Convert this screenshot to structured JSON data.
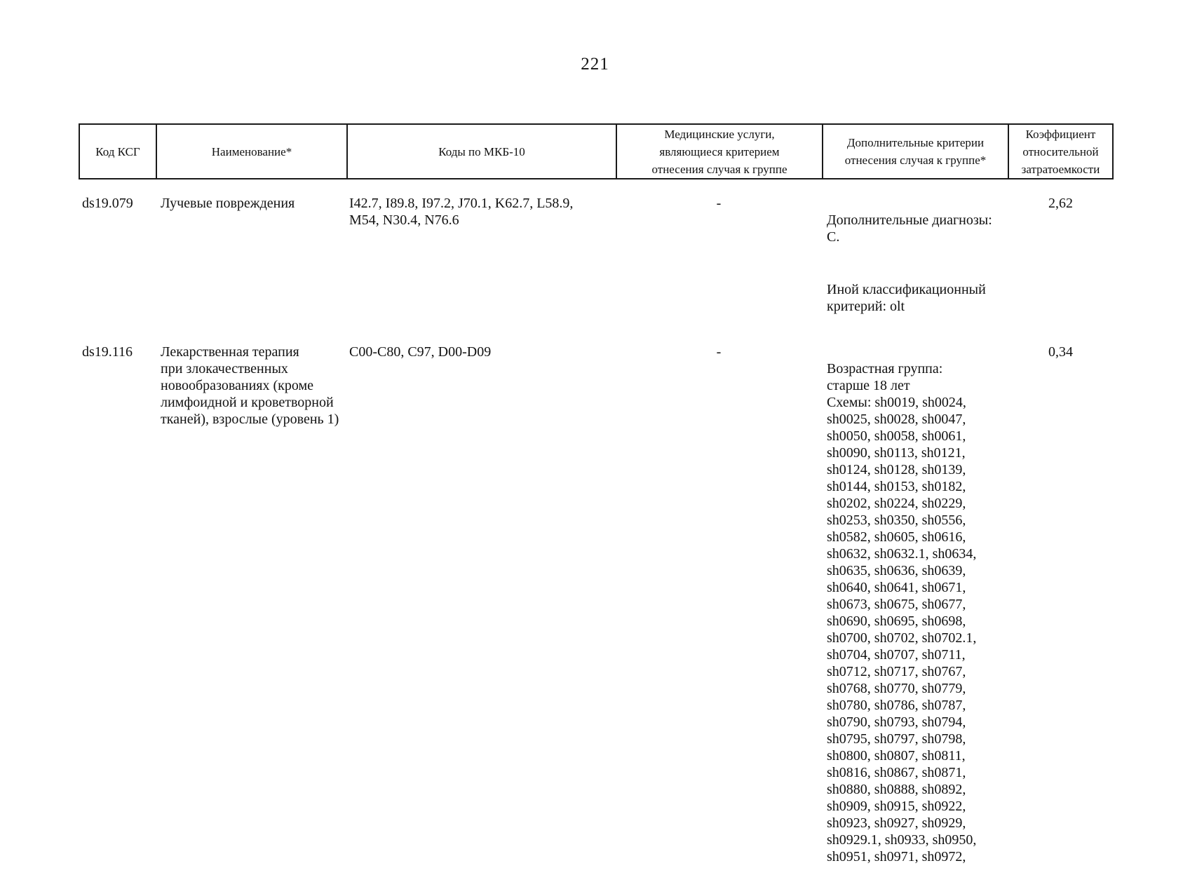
{
  "page": {
    "number": "221"
  },
  "table": {
    "headers": [
      {
        "label": "Код КСГ"
      },
      {
        "label": "Наименование*"
      },
      {
        "label": "Коды по МКБ-10"
      },
      {
        "label": "Медицинские услуги,\nявляющиеся критерием\nотнесения случая к группе"
      },
      {
        "label": "Дополнительные критерии\nотнесения случая к группе*"
      },
      {
        "label": "Коэффициент\nотносительной\nзатратоемкости"
      }
    ],
    "rows": [
      {
        "code": "ds19.079",
        "name": "Лучевые повреждения",
        "icd_codes": "I42.7, I89.8, I97.2, J70.1, K62.7, L58.9,\nM54, N30.4, N76.6",
        "medical_services": "-",
        "criteria": [
          "Дополнительные диагнозы:\nC.",
          "Иной классификационный\nкритерий: olt"
        ],
        "coefficient": "2,62"
      },
      {
        "code": "ds19.116",
        "name": "Лекарственная терапия\nпри злокачественных\nновообразованиях (кроме\nлимфоидной и кроветворной\nтканей), взрослые (уровень 1)",
        "icd_codes": "C00-C80, C97, D00-D09",
        "medical_services": "-",
        "criteria": [
          "Возрастная группа:\nстарше 18 лет\nСхемы: sh0019, sh0024,\nsh0025, sh0028, sh0047,\nsh0050, sh0058, sh0061,\nsh0090, sh0113, sh0121,\nsh0124, sh0128, sh0139,\nsh0144, sh0153, sh0182,\nsh0202, sh0224, sh0229,\nsh0253, sh0350, sh0556,\nsh0582, sh0605, sh0616,\nsh0632, sh0632.1, sh0634,\nsh0635, sh0636, sh0639,\nsh0640, sh0641, sh0671,\nsh0673, sh0675, sh0677,\nsh0690, sh0695, sh0698,\nsh0700, sh0702, sh0702.1,\nsh0704, sh0707, sh0711,\nsh0712, sh0717, sh0767,\nsh0768, sh0770, sh0779,\nsh0780, sh0786, sh0787,\nsh0790, sh0793, sh0794,\nsh0795, sh0797, sh0798,\nsh0800, sh0807, sh0811,\nsh0816, sh0867, sh0871,\nsh0880, sh0888, sh0892,\nsh0909, sh0915, sh0922,\nsh0923, sh0927, sh0929,\nsh0929.1, sh0933, sh0950,\nsh0951, sh0971, sh0972,"
        ],
        "coefficient": "0,34"
      }
    ]
  }
}
